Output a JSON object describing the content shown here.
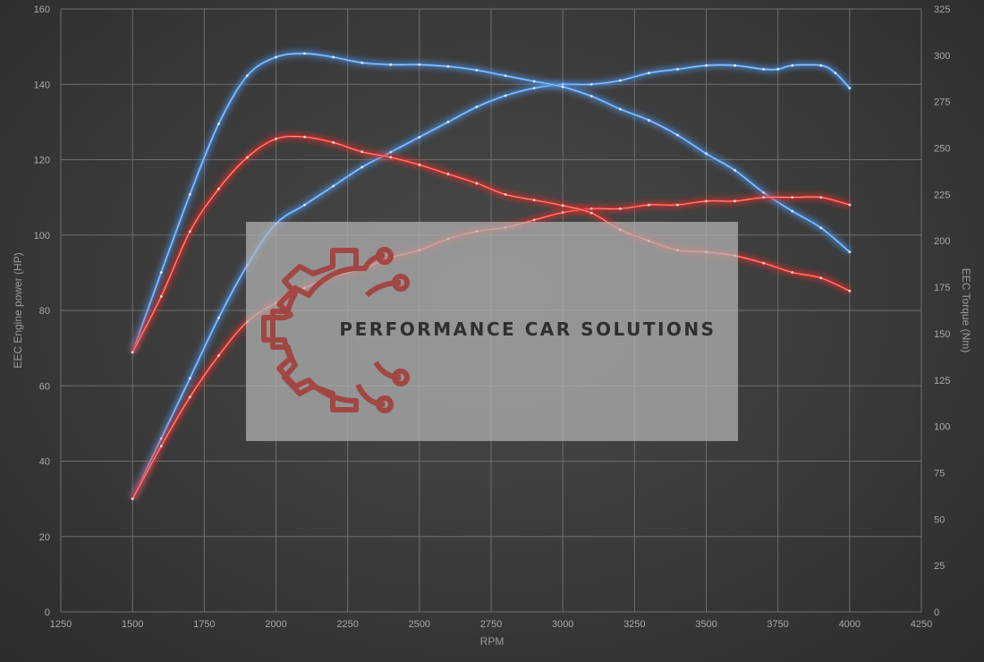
{
  "chart_data": {
    "type": "line",
    "xlabel": "RPM",
    "ylabel_left": "EEC Engine power (HP)",
    "ylabel_right": "EEC Torque (Nm)",
    "xlim": [
      1250,
      4250
    ],
    "ylim_left": [
      0,
      160
    ],
    "ylim_right": [
      0,
      325
    ],
    "x_ticks": [
      1250,
      1500,
      1750,
      2000,
      2250,
      2500,
      2750,
      3000,
      3250,
      3500,
      3750,
      4000,
      4250
    ],
    "y_left_ticks": [
      0,
      20,
      40,
      60,
      80,
      100,
      120,
      140,
      160
    ],
    "y_right_ticks": [
      0,
      25,
      50,
      75,
      100,
      125,
      150,
      175,
      200,
      225,
      250,
      275,
      300,
      325
    ],
    "grid": true,
    "series": [
      {
        "axis": "left",
        "color": "#4a8fe0",
        "points": [
          [
            1500,
            30
          ],
          [
            1600,
            46
          ],
          [
            1700,
            62
          ],
          [
            1800,
            78
          ],
          [
            1900,
            92
          ],
          [
            2000,
            103
          ],
          [
            2100,
            108
          ],
          [
            2200,
            113
          ],
          [
            2300,
            118
          ],
          [
            2400,
            122
          ],
          [
            2500,
            126
          ],
          [
            2600,
            130
          ],
          [
            2700,
            134
          ],
          [
            2800,
            137
          ],
          [
            2900,
            139
          ],
          [
            3000,
            140
          ],
          [
            3100,
            140
          ],
          [
            3200,
            141
          ],
          [
            3300,
            143
          ],
          [
            3400,
            144
          ],
          [
            3500,
            145
          ],
          [
            3600,
            145
          ],
          [
            3700,
            144
          ],
          [
            3750,
            144
          ],
          [
            3800,
            145
          ],
          [
            3900,
            145
          ],
          [
            3950,
            143
          ],
          [
            4000,
            139
          ]
        ]
      },
      {
        "axis": "right",
        "color": "#4a8fe0",
        "points": [
          [
            1500,
            140
          ],
          [
            1600,
            183
          ],
          [
            1700,
            225
          ],
          [
            1800,
            263
          ],
          [
            1900,
            289
          ],
          [
            2000,
            299
          ],
          [
            2100,
            301
          ],
          [
            2200,
            299
          ],
          [
            2300,
            296
          ],
          [
            2400,
            295
          ],
          [
            2500,
            295
          ],
          [
            2600,
            294
          ],
          [
            2700,
            292
          ],
          [
            2800,
            289
          ],
          [
            2900,
            286
          ],
          [
            3000,
            283
          ],
          [
            3100,
            278
          ],
          [
            3200,
            271
          ],
          [
            3300,
            265
          ],
          [
            3400,
            257
          ],
          [
            3500,
            247
          ],
          [
            3600,
            238
          ],
          [
            3700,
            226
          ],
          [
            3800,
            216
          ],
          [
            3900,
            207
          ],
          [
            4000,
            194
          ]
        ]
      },
      {
        "axis": "left",
        "color": "#e0302c",
        "points": [
          [
            1500,
            30
          ],
          [
            1600,
            44
          ],
          [
            1700,
            57
          ],
          [
            1800,
            68
          ],
          [
            1900,
            77
          ],
          [
            2000,
            82
          ],
          [
            2100,
            86
          ],
          [
            2200,
            89
          ],
          [
            2300,
            91
          ],
          [
            2400,
            94
          ],
          [
            2500,
            96
          ],
          [
            2600,
            99
          ],
          [
            2700,
            101
          ],
          [
            2800,
            102
          ],
          [
            2900,
            104
          ],
          [
            3000,
            106
          ],
          [
            3100,
            107
          ],
          [
            3200,
            107
          ],
          [
            3300,
            108
          ],
          [
            3400,
            108
          ],
          [
            3500,
            109
          ],
          [
            3600,
            109
          ],
          [
            3700,
            110
          ],
          [
            3800,
            110
          ],
          [
            3900,
            110
          ],
          [
            4000,
            108
          ]
        ]
      },
      {
        "axis": "right",
        "color": "#e0302c",
        "points": [
          [
            1500,
            140
          ],
          [
            1600,
            170
          ],
          [
            1700,
            205
          ],
          [
            1800,
            228
          ],
          [
            1900,
            245
          ],
          [
            2000,
            255
          ],
          [
            2100,
            256
          ],
          [
            2200,
            253
          ],
          [
            2300,
            248
          ],
          [
            2400,
            245
          ],
          [
            2500,
            241
          ],
          [
            2600,
            236
          ],
          [
            2700,
            231
          ],
          [
            2800,
            225
          ],
          [
            2900,
            222
          ],
          [
            3000,
            219
          ],
          [
            3100,
            215
          ],
          [
            3200,
            206
          ],
          [
            3300,
            200
          ],
          [
            3400,
            195
          ],
          [
            3500,
            194
          ],
          [
            3600,
            192
          ],
          [
            3700,
            188
          ],
          [
            3800,
            183
          ],
          [
            3900,
            180
          ],
          [
            4000,
            173
          ]
        ]
      }
    ]
  },
  "watermark": {
    "text": "PERFORMANCE CAR SOLUTIONS"
  }
}
